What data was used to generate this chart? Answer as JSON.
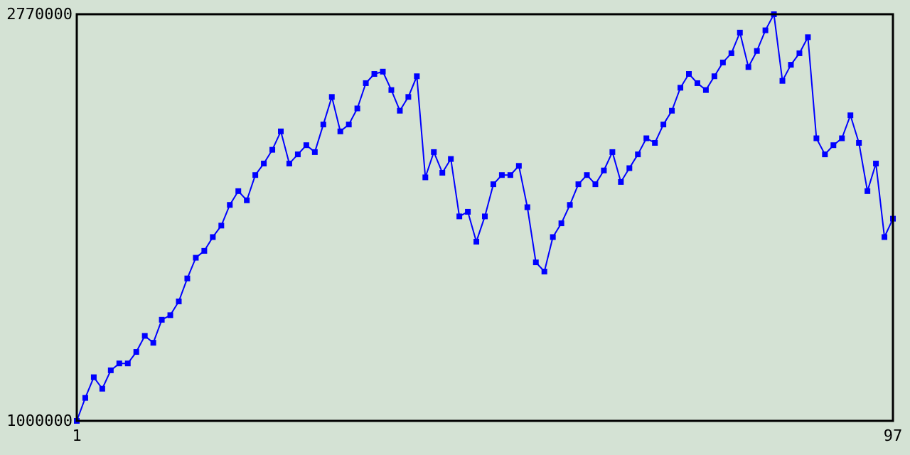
{
  "chart_data": {
    "type": "line",
    "marker": "square",
    "x": [
      1,
      2,
      3,
      4,
      5,
      6,
      7,
      8,
      9,
      10,
      11,
      12,
      13,
      14,
      15,
      16,
      17,
      18,
      19,
      20,
      21,
      22,
      23,
      24,
      25,
      26,
      27,
      28,
      29,
      30,
      31,
      32,
      33,
      34,
      35,
      36,
      37,
      38,
      39,
      40,
      41,
      42,
      43,
      44,
      45,
      46,
      47,
      48,
      49,
      50,
      51,
      52,
      53,
      54,
      55,
      56,
      57,
      58,
      59,
      60,
      61,
      62,
      63,
      64,
      65,
      66,
      67,
      68,
      69,
      70,
      71,
      72,
      73,
      74,
      75,
      76,
      77,
      78,
      79,
      80,
      81,
      82,
      83,
      84,
      85,
      86,
      87,
      88,
      89,
      90,
      91,
      92,
      93,
      94,
      95,
      96,
      97
    ],
    "series": [
      {
        "color": "#0000ff",
        "values": [
          1000000,
          1100000,
          1190000,
          1140000,
          1220000,
          1250000,
          1250000,
          1300000,
          1370000,
          1340000,
          1440000,
          1460000,
          1520000,
          1620000,
          1710000,
          1740000,
          1800000,
          1850000,
          1940000,
          2000000,
          1960000,
          2070000,
          2120000,
          2180000,
          2260000,
          2120000,
          2160000,
          2200000,
          2170000,
          2290000,
          2410000,
          2260000,
          2290000,
          2360000,
          2470000,
          2510000,
          2520000,
          2440000,
          2350000,
          2410000,
          2500000,
          2060000,
          2170000,
          2080000,
          2140000,
          1890000,
          1910000,
          1780000,
          1890000,
          2030000,
          2070000,
          2070000,
          2110000,
          1930000,
          1690000,
          1650000,
          1800000,
          1860000,
          1940000,
          2030000,
          2070000,
          2030000,
          2090000,
          2170000,
          2040000,
          2100000,
          2160000,
          2230000,
          2210000,
          2290000,
          2350000,
          2450000,
          2510000,
          2470000,
          2440000,
          2500000,
          2560000,
          2600000,
          2690000,
          2540000,
          2610000,
          2700000,
          2770000,
          2480000,
          2550000,
          2600000,
          2670000,
          2230000,
          2160000,
          2200000,
          2230000,
          2330000,
          2210000,
          2000000,
          2120000,
          1800000,
          1880000
        ]
      }
    ],
    "xlim": [
      1,
      97
    ],
    "xticks": [
      1,
      97
    ],
    "ylim": [
      1000000,
      2770000
    ],
    "yticks": [
      1000000,
      2770000
    ]
  }
}
